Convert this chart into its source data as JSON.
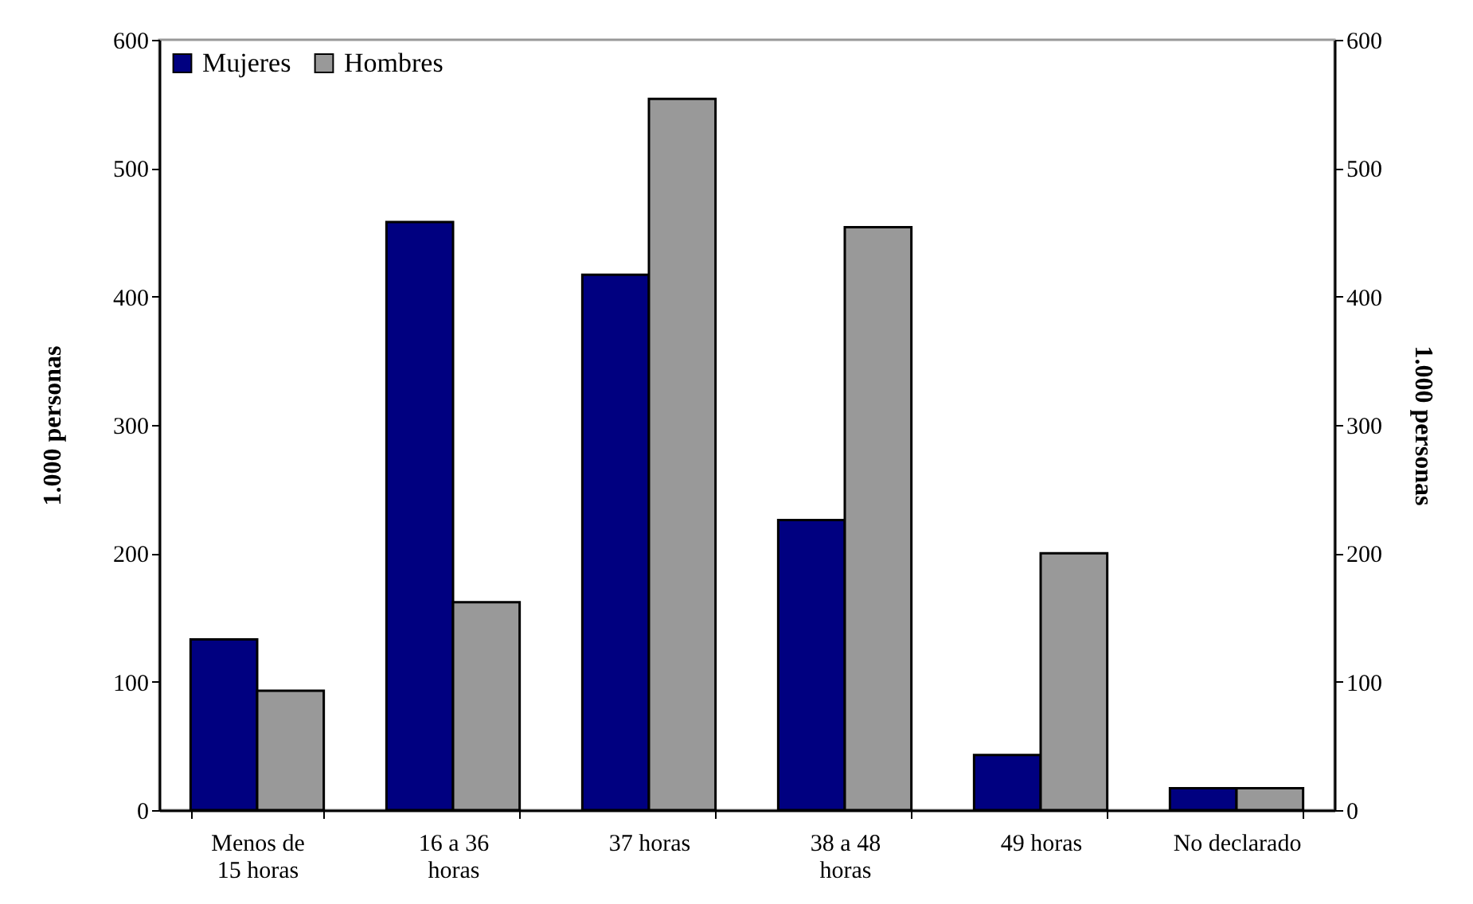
{
  "chart_data": {
    "type": "bar",
    "categories": [
      "Menos de 15 horas",
      "16 a 36 horas",
      "37 horas",
      "38 a 48 horas",
      "49 horas",
      "No declarado"
    ],
    "series": [
      {
        "name": "Mujeres",
        "color": "#000080",
        "values": [
          133,
          458,
          417,
          226,
          43,
          17
        ]
      },
      {
        "name": "Hombres",
        "color": "#999999",
        "values": [
          93,
          162,
          554,
          454,
          200,
          17
        ]
      }
    ],
    "ylabel": "1.000 personas",
    "y2label": "1.000 personas",
    "ylim": [
      0,
      600
    ],
    "yticks": [
      0,
      100,
      200,
      300,
      400,
      500,
      600
    ],
    "y2lim": [
      0,
      600
    ],
    "y2ticks": [
      0,
      100,
      200,
      300,
      400,
      500,
      600
    ],
    "legend": "top left",
    "grid": false
  }
}
